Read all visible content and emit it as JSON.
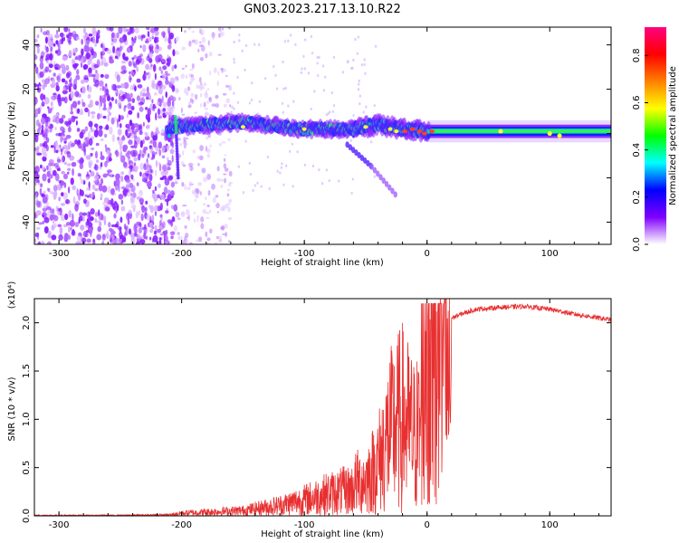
{
  "title": "GN03.2023.217.13.10.R22",
  "chart_data": [
    {
      "type": "heatmap",
      "name": "spectrogram",
      "xlabel": "Height of straight line (km)",
      "ylabel": "Frequency (Hz)",
      "xlim": [
        -320,
        150
      ],
      "ylim": [
        -50,
        48
      ],
      "x_ticks": [
        -300,
        -200,
        -100,
        0,
        100
      ],
      "y_ticks": [
        -40,
        -20,
        0,
        20,
        40
      ],
      "colorbar": {
        "label": "Normalized spectral amplitude",
        "range": [
          0,
          0.92
        ],
        "ticks": [
          "0.0",
          "0.2",
          "0.4",
          "0.6",
          "0.8"
        ],
        "colormap": [
          "#ffffff",
          "#8000ff",
          "#0000ff",
          "#00ffff",
          "#00ff00",
          "#ffff00",
          "#ff8000",
          "#ff0000",
          "#ff0080"
        ]
      },
      "features": {
        "noise_region_x": [
          -320,
          -205
        ],
        "sparse_region_x": [
          -205,
          -160
        ],
        "signal_centerline": [
          [
            -210,
            3
          ],
          [
            -150,
            5
          ],
          [
            -100,
            2
          ],
          [
            -60,
            2
          ],
          [
            -40,
            4
          ],
          [
            -20,
            2
          ],
          [
            0,
            1
          ],
          [
            150,
            1
          ]
        ],
        "secondary_streak": [
          [
            -65,
            -5
          ],
          [
            -45,
            -15
          ],
          [
            -25,
            -28
          ]
        ]
      }
    },
    {
      "type": "line",
      "name": "snr",
      "xlabel": "Height of straight line (km)",
      "ylabel": "SNR (10 * v/v)",
      "scale_label": "(x10⁴)",
      "xlim": [
        -320,
        150
      ],
      "ylim": [
        0,
        2.25
      ],
      "x_ticks": [
        -300,
        -200,
        -100,
        0,
        100
      ],
      "y_ticks": [
        "0.0",
        "0.5",
        "1.0",
        "1.5",
        "2.0"
      ],
      "color": "#e83030",
      "envelope": [
        [
          -320,
          0.01
        ],
        [
          -250,
          0.01
        ],
        [
          -210,
          0.02
        ],
        [
          -200,
          0.05
        ],
        [
          -150,
          0.1
        ],
        [
          -120,
          0.2
        ],
        [
          -100,
          0.3
        ],
        [
          -80,
          0.42
        ],
        [
          -60,
          0.5
        ],
        [
          -50,
          0.55
        ],
        [
          -40,
          0.8
        ],
        [
          -30,
          1.3
        ],
        [
          -20,
          1.5
        ],
        [
          -10,
          1.2
        ],
        [
          0,
          1.5
        ],
        [
          10,
          1.9
        ],
        [
          20,
          2.05
        ],
        [
          30,
          2.1
        ],
        [
          40,
          2.14
        ],
        [
          60,
          2.16
        ],
        [
          80,
          2.17
        ],
        [
          100,
          2.14
        ],
        [
          120,
          2.09
        ],
        [
          150,
          2.03
        ]
      ]
    }
  ]
}
